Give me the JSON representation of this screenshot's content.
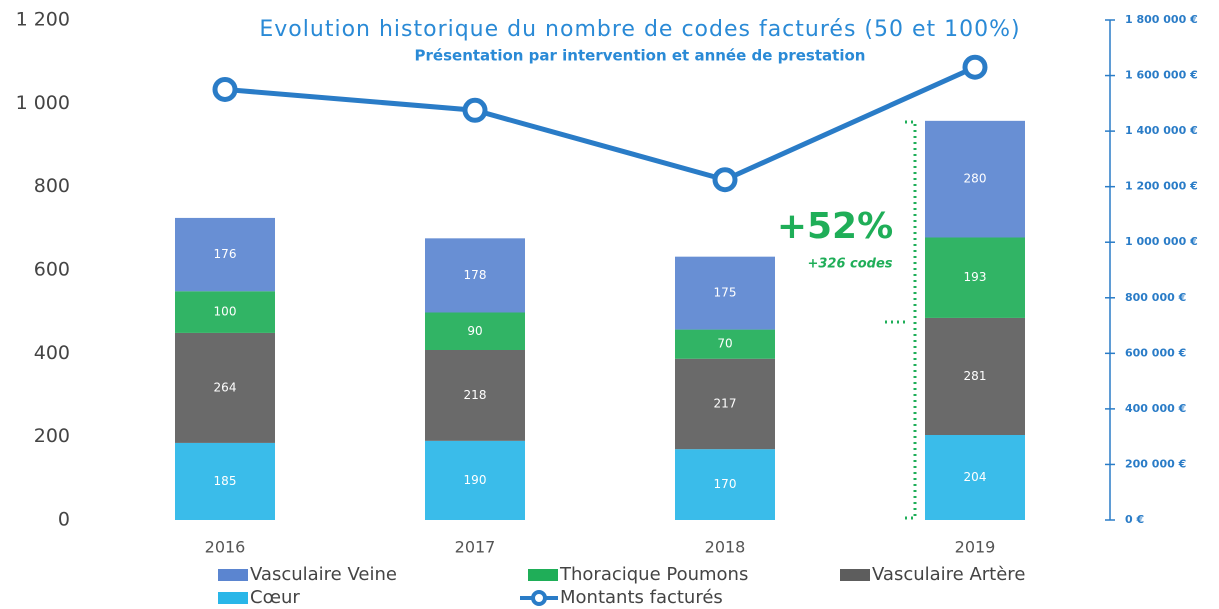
{
  "chart_data": {
    "type": "bar",
    "title": "Evolution historique du nombre de codes facturés (50 et 100%)",
    "subtitle": "Présentation par intervention et année de prestation",
    "stacked": true,
    "categories": [
      "2016",
      "2017",
      "2018",
      "2019"
    ],
    "series": [
      {
        "name": "Cœur",
        "color": "#29b6e8",
        "values": [
          185,
          190,
          170,
          204
        ]
      },
      {
        "name": "Vasculaire Artère",
        "color": "#5d5d5d",
        "values": [
          264,
          218,
          217,
          281
        ]
      },
      {
        "name": "Thoracique Poumons",
        "color": "#1fae58",
        "values": [
          100,
          90,
          70,
          193
        ]
      },
      {
        "name": "Vasculaire Veine",
        "color": "#5b85d0",
        "values": [
          176,
          178,
          175,
          280
        ]
      },
      {
        "name": "Montants facturés",
        "color": "#2a7cc7",
        "type": "line",
        "axis": "y2",
        "values": [
          1550000,
          1475000,
          1225000,
          1630000
        ]
      }
    ],
    "ylim": [
      0,
      1200
    ],
    "yticks": [
      0,
      200,
      400,
      600,
      800,
      {
        "value": 1000,
        "label": "1 000"
      },
      {
        "value": 1200,
        "label": "1 200"
      }
    ],
    "y2lim": [
      0,
      1800000
    ],
    "y2ticks": [
      {
        "value": 0,
        "label": "0 €"
      },
      {
        "value": 200000,
        "label": "200 000 €"
      },
      {
        "value": 400000,
        "label": "400 000 €"
      },
      {
        "value": 600000,
        "label": "600 000 €"
      },
      {
        "value": 800000,
        "label": "800 000 €"
      },
      {
        "value": 1000000,
        "label": "1 000 000 €"
      },
      {
        "value": 1200000,
        "label": "1 200 000 €"
      },
      {
        "value": 1400000,
        "label": "1 400 000 €"
      },
      {
        "value": 1600000,
        "label": "1 600 000 €"
      },
      {
        "value": 1800000,
        "label": "1 800 000 €"
      }
    ],
    "annotations": [
      "+52%",
      "+326 codes"
    ],
    "grid": false
  }
}
